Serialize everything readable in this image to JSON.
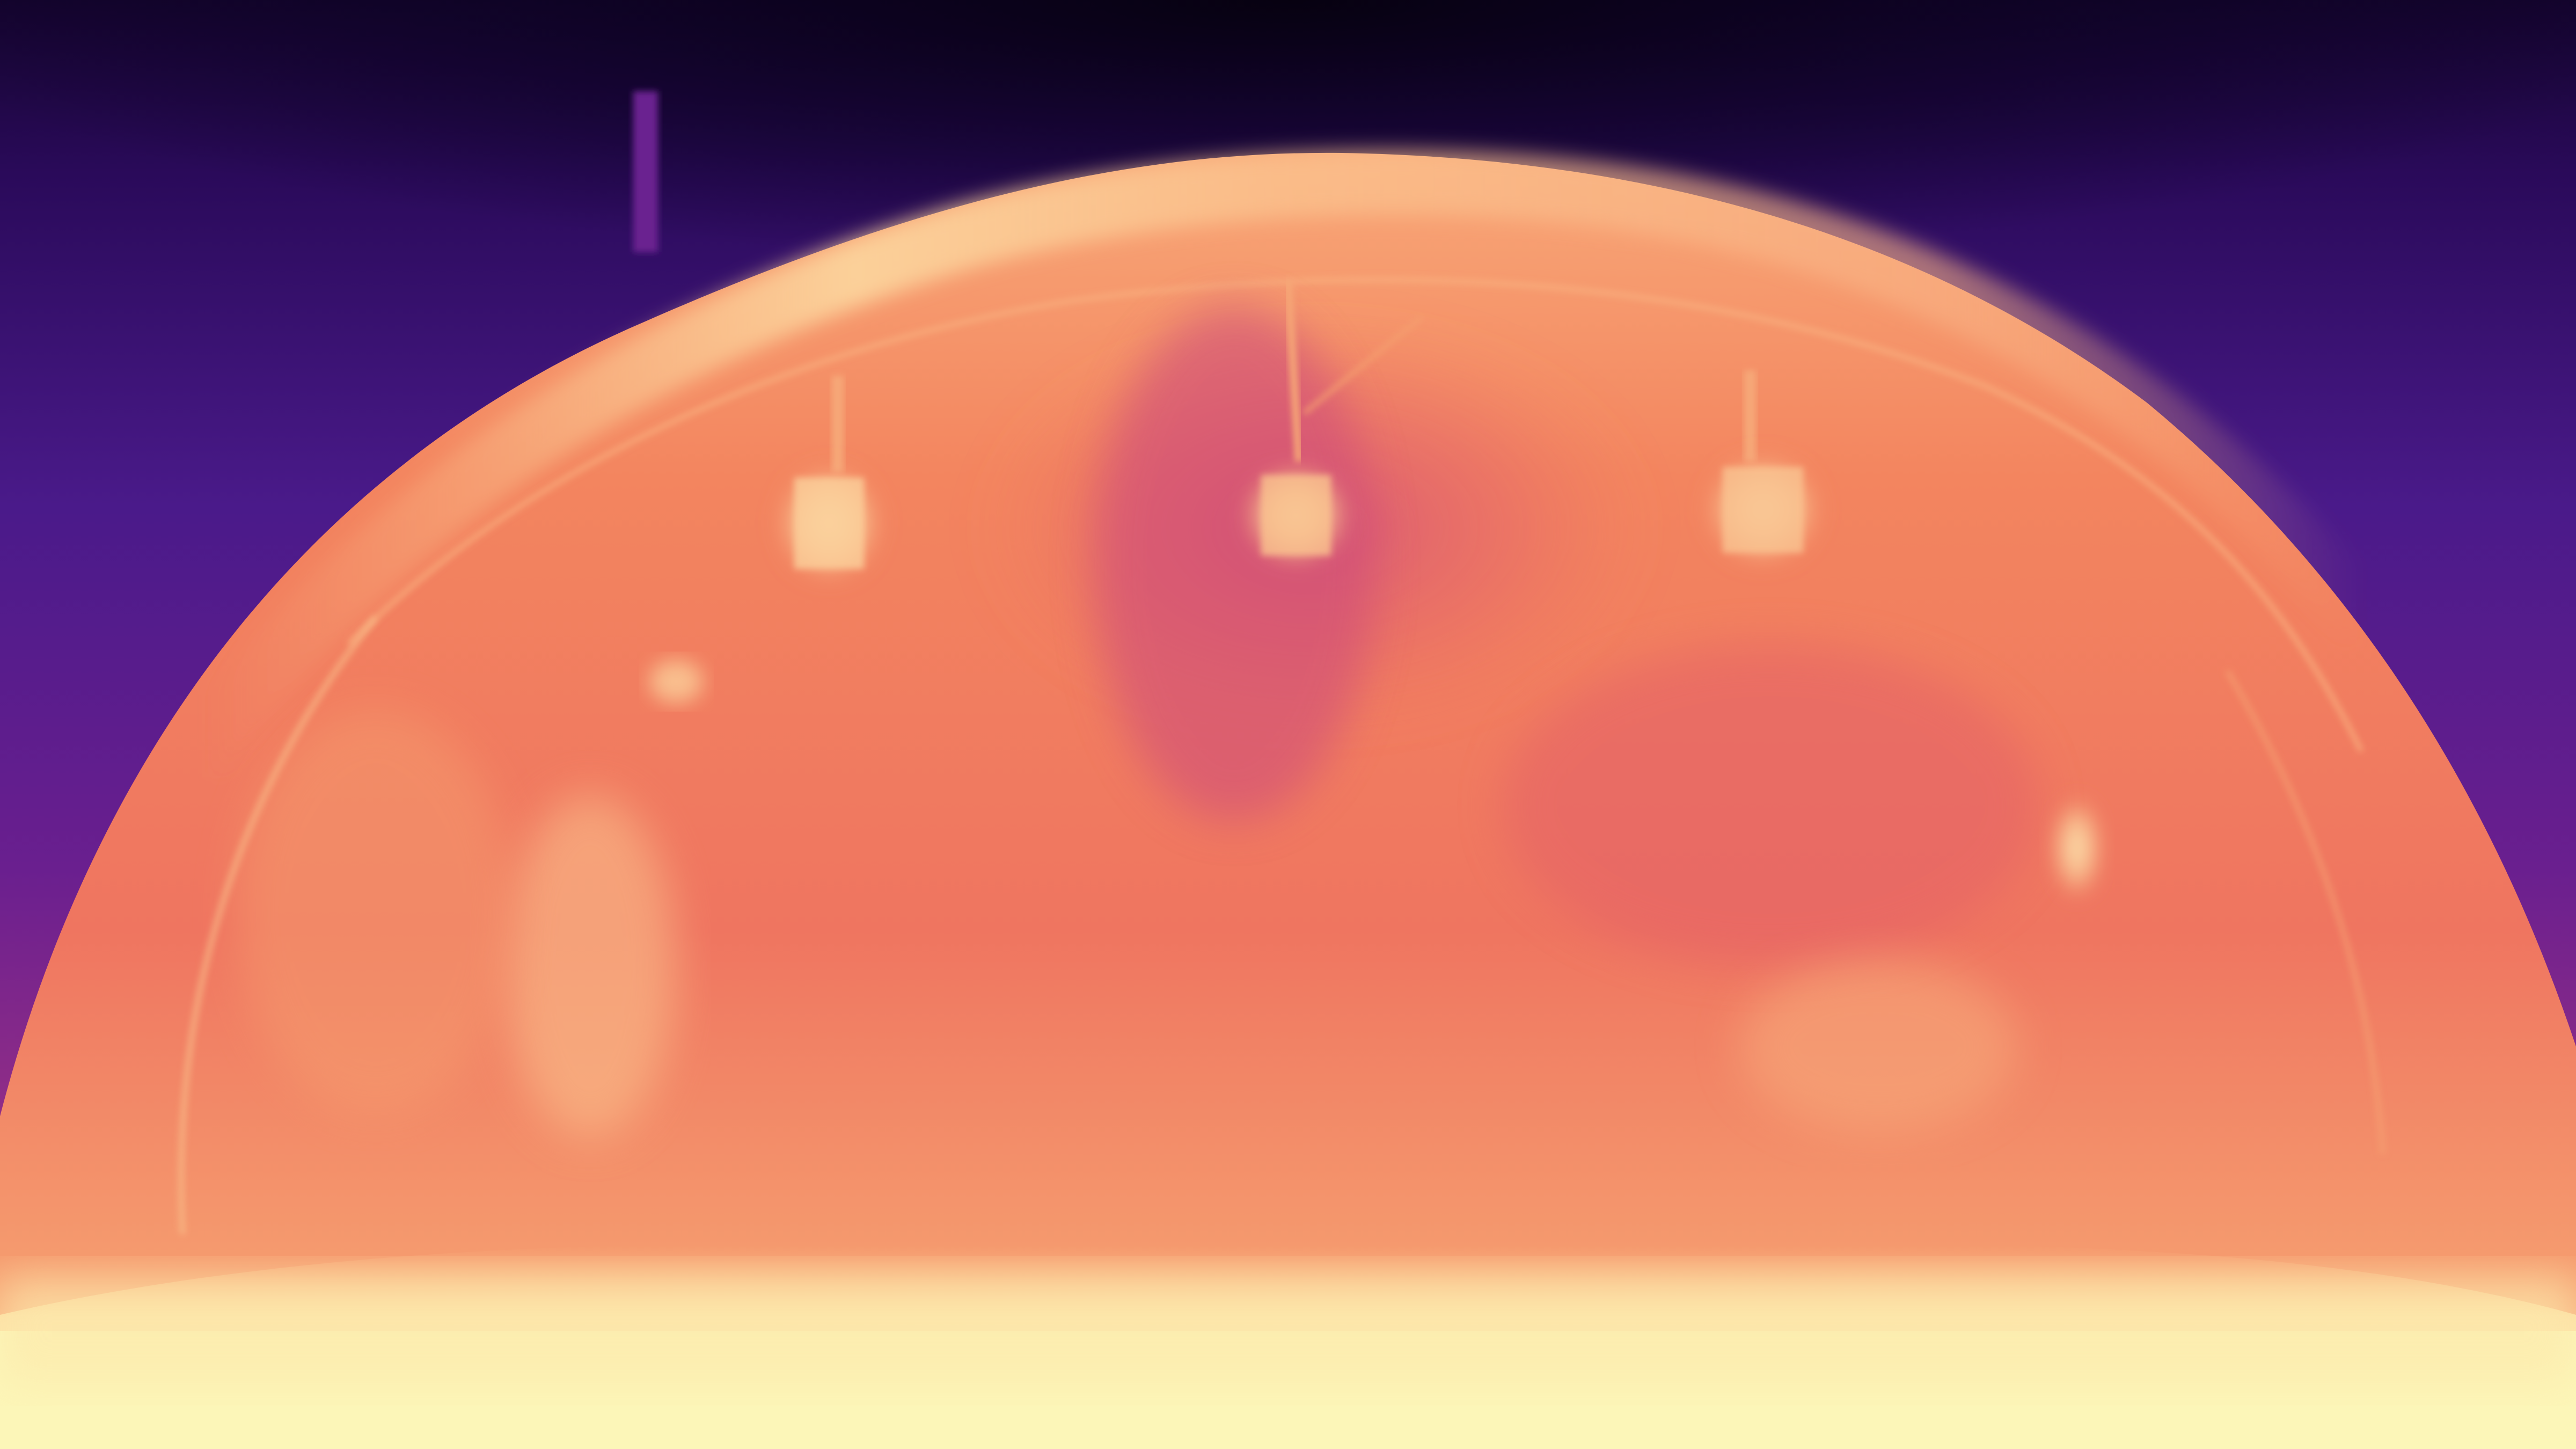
{
  "image": {
    "kind": "depth-map",
    "colormap": "magma",
    "subject": "tunnel-interior",
    "palette": {
      "far": "#0b0220",
      "mid_far": "#4a1a8a",
      "mid": "#b73779",
      "near_mid": "#f0705a",
      "near": "#f8b883",
      "nearest": "#fcfdbf"
    },
    "features": [
      "ceiling-arch",
      "tunnel-lamp-left",
      "tunnel-lamp-center",
      "tunnel-lamp-right",
      "tunnel-lamp-lower-right",
      "center-cable",
      "left-pole",
      "road-surface"
    ]
  }
}
